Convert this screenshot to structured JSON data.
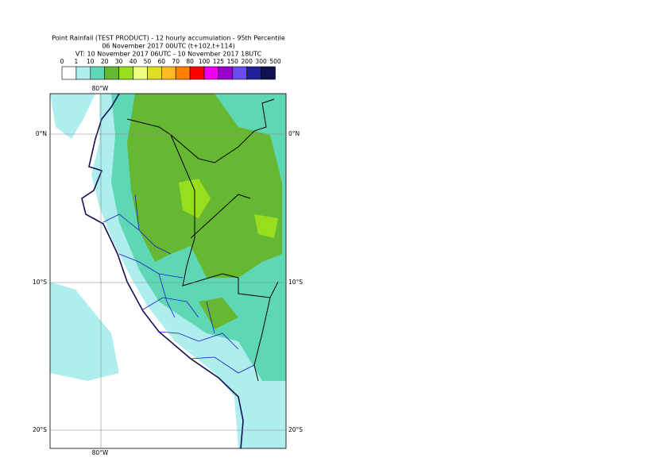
{
  "header": {
    "lines": [
      "Point Rainfall (TEST PRODUCT) - 12 hourly accumulation - 95th Percentile",
      "06 November 2017 00UTC (t+102,t+114)",
      "VT: 10 November 2017 06UTC - 10 November 2017 18UTC"
    ]
  },
  "colorbar": {
    "labels": [
      "0",
      "1",
      "10",
      "20",
      "30",
      "40",
      "50",
      "60",
      "70",
      "80",
      "100",
      "125",
      "150",
      "200",
      "300",
      "500"
    ],
    "colors": [
      "#ffffff",
      "#aeeeee",
      "#5ed8b4",
      "#66b832",
      "#99dd1f",
      "#eeff80",
      "#dede22",
      "#ffbb22",
      "#ff8000",
      "#ff0000",
      "#ee00ee",
      "#9a00cc",
      "#6a4cf0",
      "#20209a",
      "#101050"
    ]
  },
  "map": {
    "lon_labels": {
      "top": "80°W",
      "bottom": "80°W"
    },
    "lat_labels": [
      {
        "left": "0°N",
        "right": "0°N"
      },
      {
        "left": "10°S",
        "right": "10°S"
      },
      {
        "left": "20°S",
        "right": "20°S"
      }
    ]
  }
}
